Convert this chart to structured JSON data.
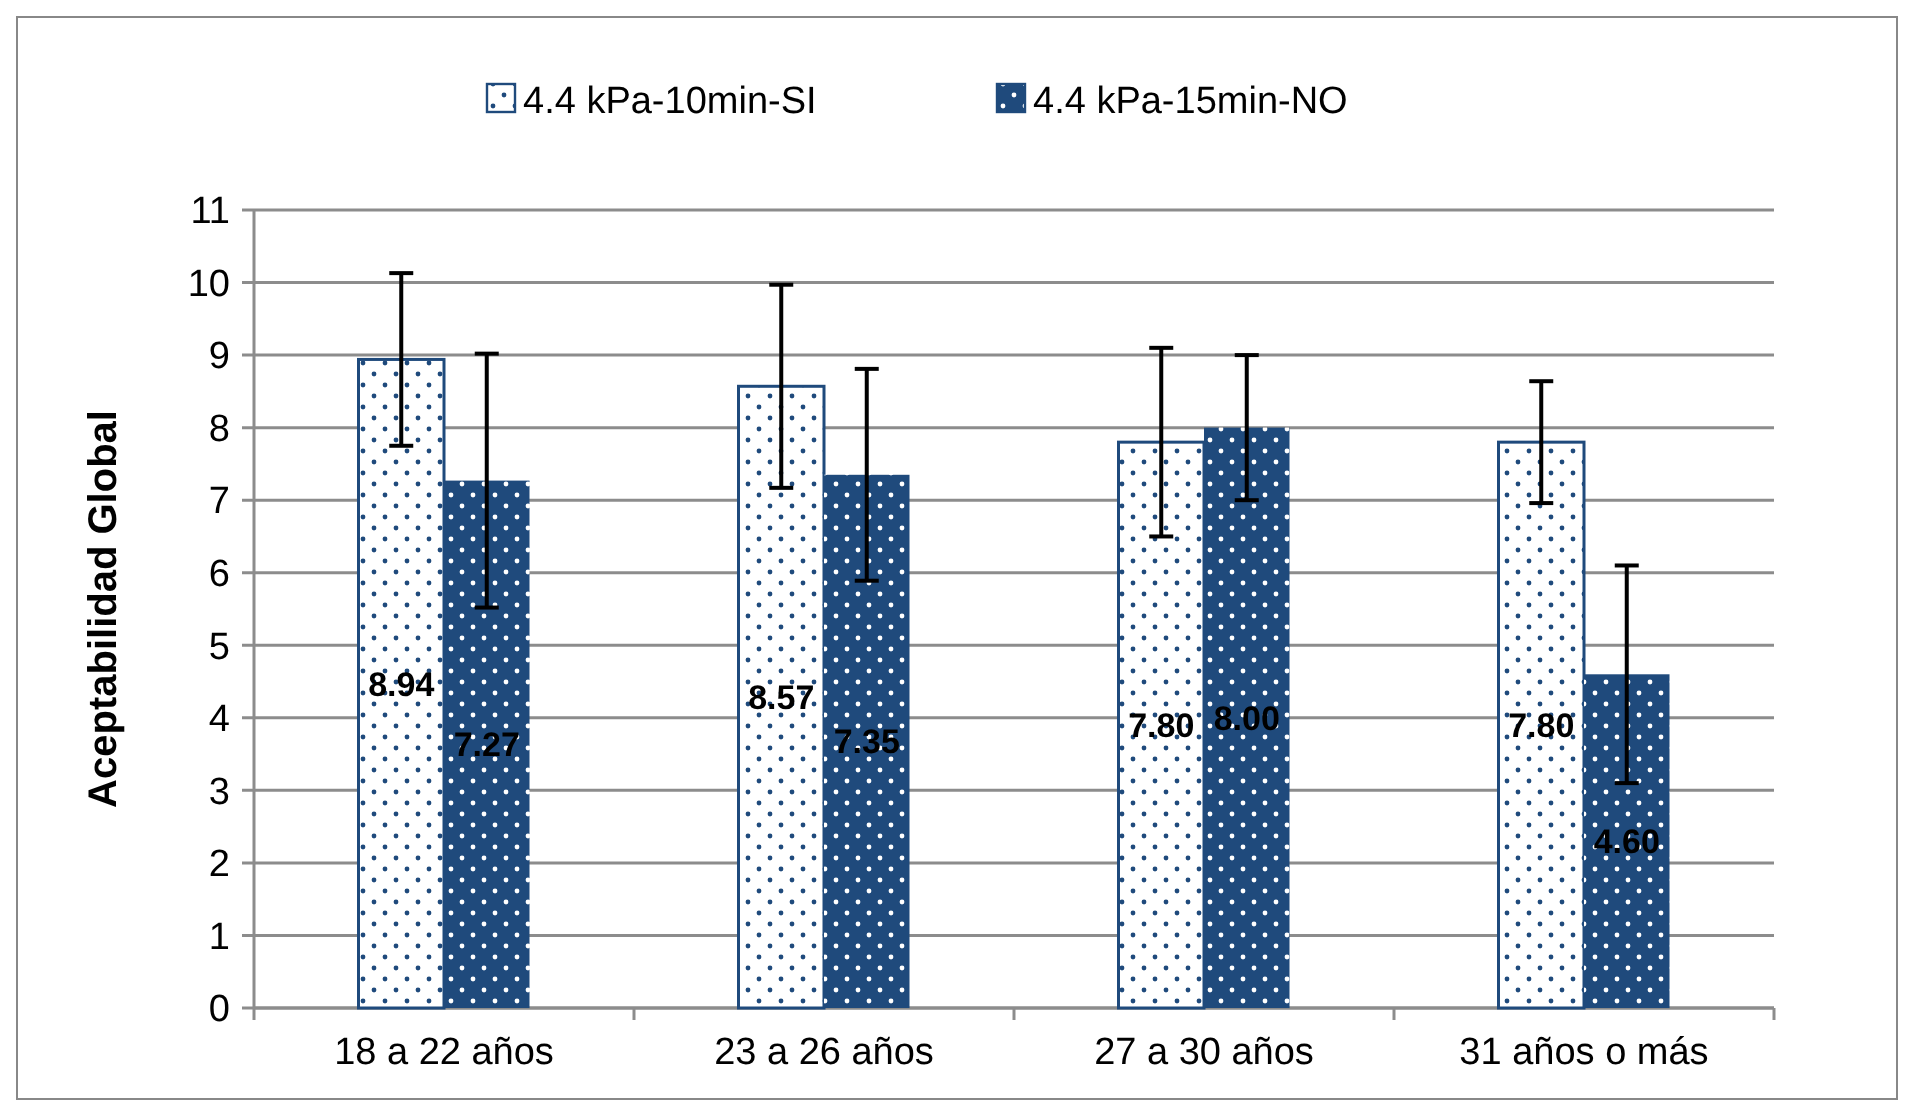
{
  "chart_data": {
    "type": "bar",
    "ylabel": "Aceptabilidad Global",
    "categories": [
      "18 a 22 años",
      "23 a 26 años",
      "27 a 30 años",
      "31 años o más"
    ],
    "series": [
      {
        "name": "4.4 kPa-10min-SI",
        "color": "#ffffff",
        "values": [
          8.94,
          8.57,
          7.8,
          7.8
        ],
        "value_labels": [
          "8.94",
          "8.57",
          "7.80",
          "7.80"
        ],
        "errors": [
          1.19,
          1.4,
          1.3,
          0.84
        ]
      },
      {
        "name": "4.4 kPa-15min-NO",
        "color": "#1f4a7c",
        "values": [
          7.27,
          7.35,
          8.0,
          4.6
        ],
        "value_labels": [
          "7.27",
          "7.35",
          "8.00",
          "4.60"
        ],
        "errors": [
          1.75,
          1.46,
          1.0,
          1.5
        ]
      }
    ],
    "ylim": [
      0,
      11
    ],
    "yticks": [
      0,
      1,
      2,
      3,
      4,
      5,
      6,
      7,
      8,
      9,
      10,
      11
    ],
    "grid": "y",
    "legend": "top"
  }
}
